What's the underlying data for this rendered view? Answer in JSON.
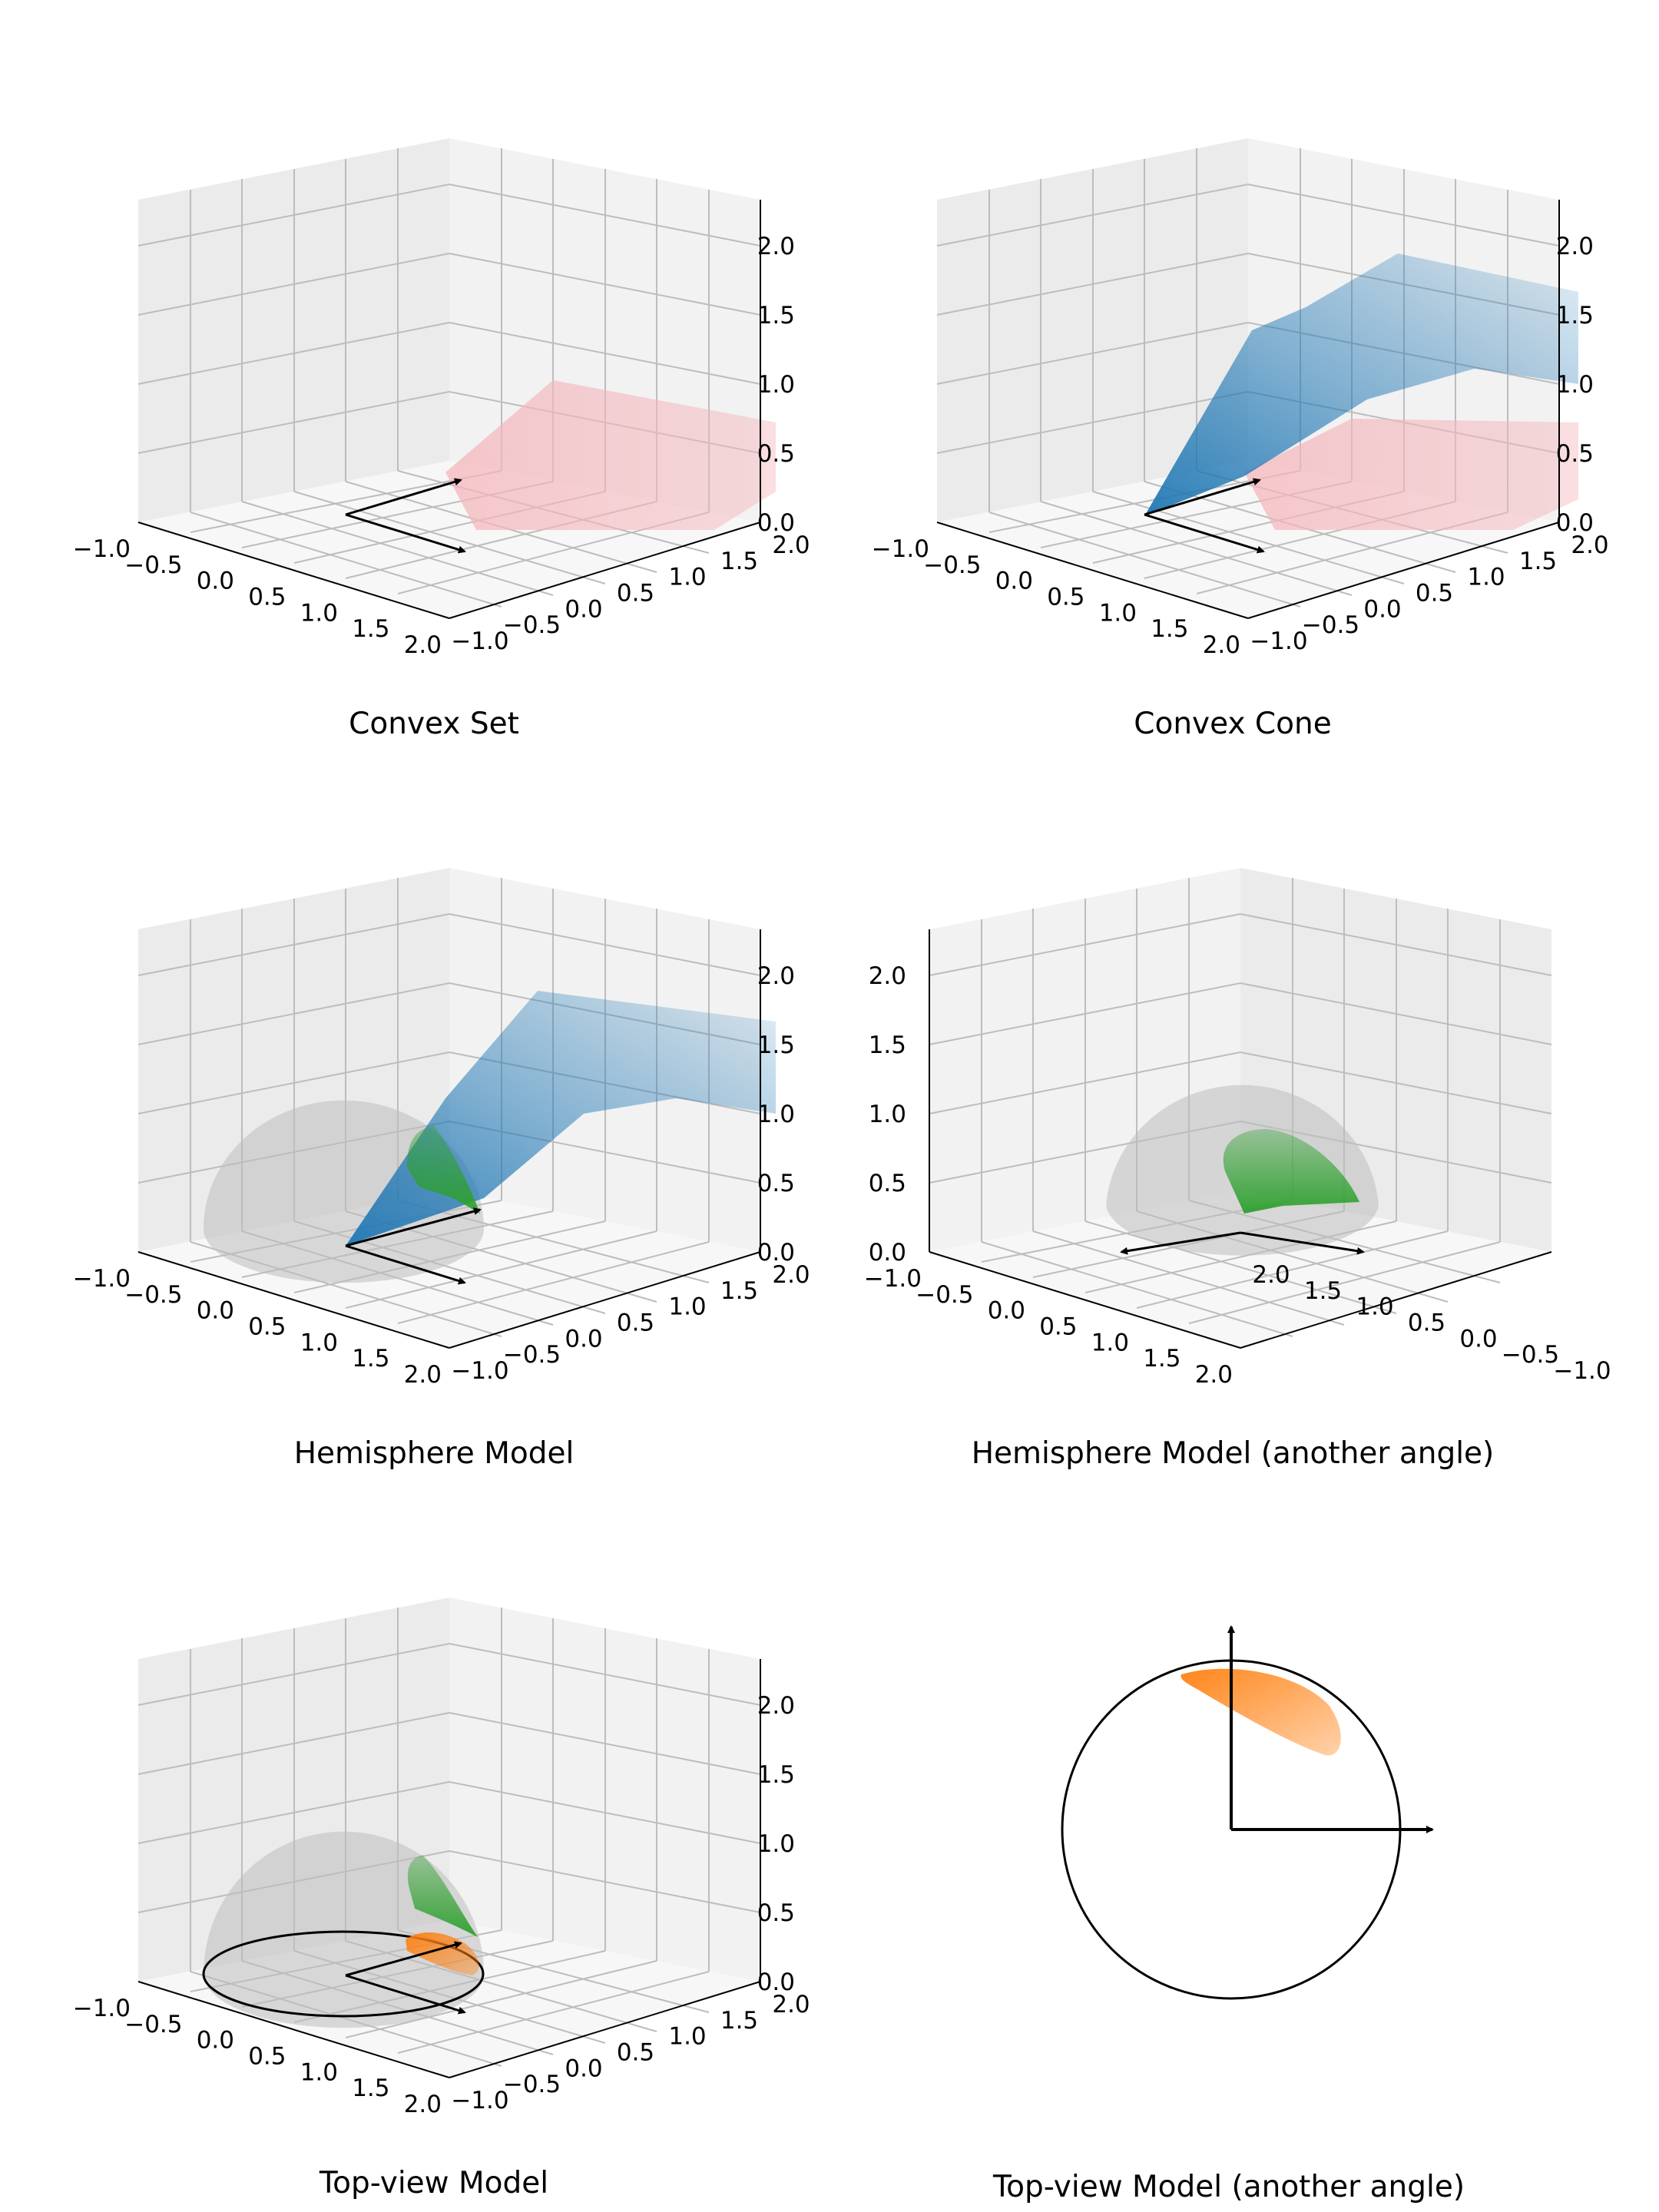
{
  "figure": {
    "background": "#ffffff",
    "colors": {
      "pane_left": "#ebebeb",
      "pane_right": "#f2f2f2",
      "pane_floor": "#f7f7f7",
      "grid": "#bdbdbd",
      "convex_set": "#f4b6bc",
      "cone": "#1f77b4",
      "hemisphere": "#bdbdbd",
      "green_patch": "#2ca02c",
      "orange_patch": "#ff7f0e",
      "arrows": "#000000"
    }
  },
  "chart_data": [
    {
      "type": "surface3d",
      "caption": "Convex Set",
      "xlim": [
        -1.0,
        2.0
      ],
      "ylim": [
        -1.0,
        2.0
      ],
      "zlim": [
        0.0,
        2.0
      ],
      "x_ticks": [
        "−1.0",
        "−0.5",
        "0.0",
        "0.5",
        "1.0",
        "1.5",
        "2.0"
      ],
      "y_ticks": [
        "−1.0",
        "−0.5",
        "0.0",
        "0.5",
        "1.0",
        "1.5",
        "2.0"
      ],
      "z_ticks": [
        "0.0",
        "0.5",
        "1.0",
        "1.5",
        "2.0"
      ],
      "layers": [
        "convex_set"
      ],
      "arrows": true
    },
    {
      "type": "surface3d",
      "caption": "Convex Cone",
      "xlim": [
        -1.0,
        2.0
      ],
      "ylim": [
        -1.0,
        2.0
      ],
      "zlim": [
        0.0,
        2.0
      ],
      "x_ticks": [
        "−1.0",
        "−0.5",
        "0.0",
        "0.5",
        "1.0",
        "1.5",
        "2.0"
      ],
      "y_ticks": [
        "−1.0",
        "−0.5",
        "0.0",
        "0.5",
        "1.0",
        "1.5",
        "2.0"
      ],
      "z_ticks": [
        "0.0",
        "0.5",
        "1.0",
        "1.5",
        "2.0"
      ],
      "layers": [
        "convex_set",
        "cone"
      ],
      "arrows": true
    },
    {
      "type": "surface3d",
      "caption": "Hemisphere Model",
      "xlim": [
        -1.0,
        2.0
      ],
      "ylim": [
        -1.0,
        2.0
      ],
      "zlim": [
        0.0,
        2.0
      ],
      "x_ticks": [
        "−1.0",
        "−0.5",
        "0.0",
        "0.5",
        "1.0",
        "1.5",
        "2.0"
      ],
      "y_ticks": [
        "−1.0",
        "−0.5",
        "0.0",
        "0.5",
        "1.0",
        "1.5",
        "2.0"
      ],
      "z_ticks": [
        "0.0",
        "0.5",
        "1.0",
        "1.5",
        "2.0"
      ],
      "layers": [
        "hemisphere",
        "cone",
        "green_patch"
      ],
      "arrows": true
    },
    {
      "type": "surface3d",
      "caption": "Hemisphere Model (another angle)",
      "mirrored": true,
      "xlim": [
        -1.0,
        2.0
      ],
      "ylim": [
        -1.0,
        2.0
      ],
      "zlim": [
        0.0,
        2.0
      ],
      "x_ticks": [
        "−1.0",
        "−0.5",
        "0.0",
        "0.5",
        "1.0",
        "1.5",
        "2.0"
      ],
      "y_ticks": [
        "−1.0",
        "−0.5",
        "0.0",
        "0.5",
        "1.0",
        "1.5",
        "2.0"
      ],
      "z_ticks": [
        "0.0",
        "0.5",
        "1.0",
        "1.5",
        "2.0"
      ],
      "layers": [
        "hemisphere",
        "green_patch"
      ],
      "arrows": true
    },
    {
      "type": "surface3d",
      "caption": "Top-view Model",
      "xlim": [
        -1.0,
        2.0
      ],
      "ylim": [
        -1.0,
        2.0
      ],
      "zlim": [
        0.0,
        2.0
      ],
      "x_ticks": [
        "−1.0",
        "−0.5",
        "0.0",
        "0.5",
        "1.0",
        "1.5",
        "2.0"
      ],
      "y_ticks": [
        "−1.0",
        "−0.5",
        "0.0",
        "0.5",
        "1.0",
        "1.5",
        "2.0"
      ],
      "z_ticks": [
        "0.0",
        "0.5",
        "1.0",
        "1.5",
        "2.0"
      ],
      "layers": [
        "hemisphere",
        "green_patch",
        "floor_circle",
        "orange_patch"
      ],
      "arrows": true
    },
    {
      "type": "scatter",
      "caption": "Top-view Model (another angle)",
      "unit_circle": true,
      "layers": [
        "orange_patch"
      ],
      "arrows": true
    }
  ]
}
